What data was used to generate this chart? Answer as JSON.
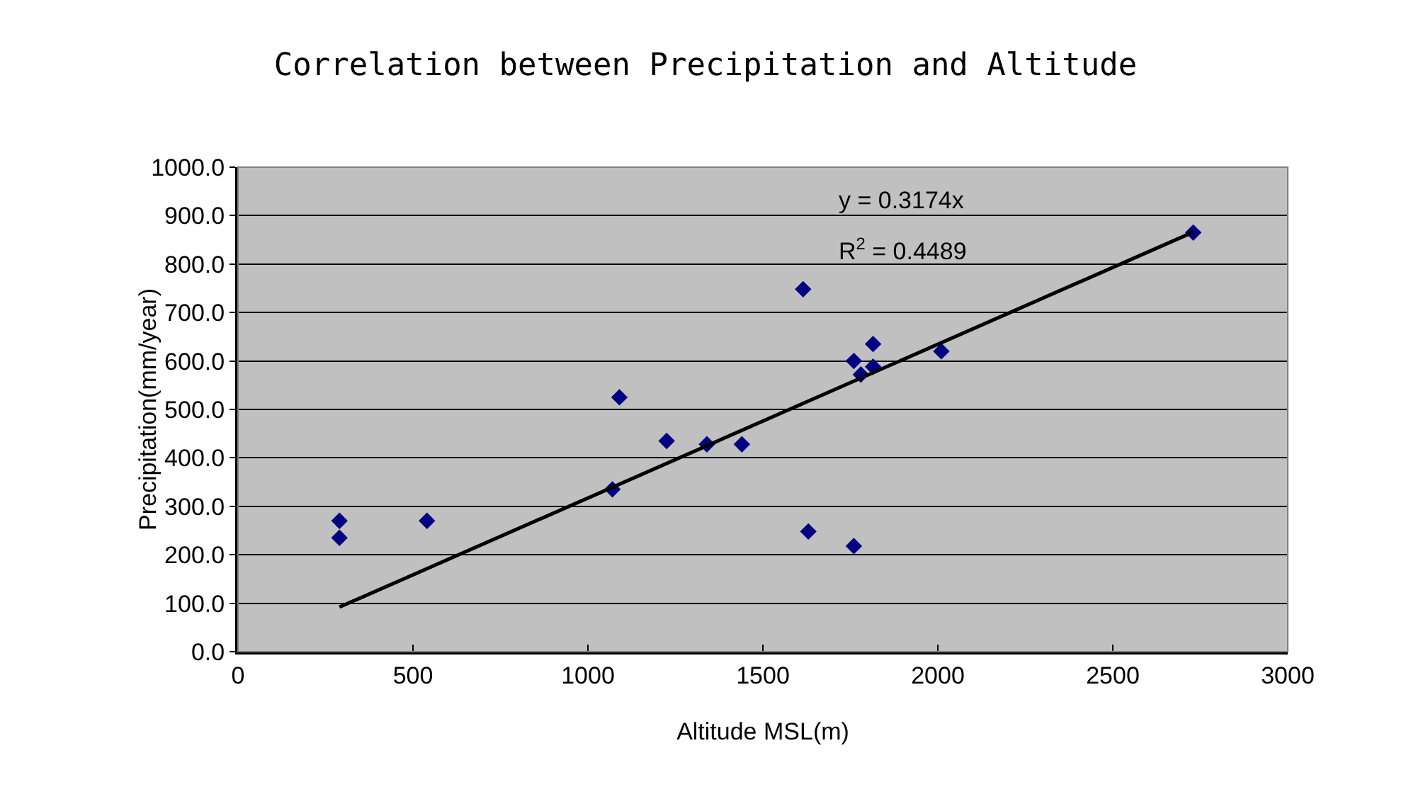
{
  "chart_data": {
    "type": "scatter",
    "title": "Correlation between Precipitation and Altitude",
    "xlabel": "Altitude MSL(m)",
    "ylabel": "Precipitation(mm/year)",
    "series": [
      {
        "color": "#000080",
        "x": [
          290,
          290,
          540,
          1070,
          1090,
          1225,
          1340,
          1440,
          1615,
          1630,
          1760,
          1760,
          1780,
          1815,
          1815,
          2010,
          2730
        ],
        "values": [
          270,
          235,
          270,
          335,
          525,
          435,
          428,
          428,
          748,
          248,
          600,
          218,
          572,
          635,
          588,
          620,
          865
        ]
      },
      {
        "type": "line",
        "color": "#000000",
        "x": [
          290,
          2730
        ],
        "values": [
          92,
          866
        ],
        "marker": "none"
      }
    ],
    "annotations": [
      "y = 0.3174x",
      "R$^{2}$ = 0.4489"
    ],
    "xlim": [
      0,
      3000
    ],
    "xticks": [
      0,
      500,
      1000,
      1500,
      2000,
      2500,
      3000
    ],
    "ylim": [
      0,
      1000
    ],
    "yticks": [
      {
        "value": 0,
        "label": "0.0"
      },
      {
        "value": 100,
        "label": "100.0"
      },
      {
        "value": 200,
        "label": "200.0"
      },
      {
        "value": 300,
        "label": "300.0"
      },
      {
        "value": 400,
        "label": "400.0"
      },
      {
        "value": 500,
        "label": "500.0"
      },
      {
        "value": 600,
        "label": "600.0"
      },
      {
        "value": 700,
        "label": "700.0"
      },
      {
        "value": 800,
        "label": "800.0"
      },
      {
        "value": 900,
        "label": "900.0"
      },
      {
        "value": 1000,
        "label": "1000.0"
      }
    ],
    "grid": "y",
    "legend": false,
    "marker": "diamond",
    "line_style": "solid"
  }
}
